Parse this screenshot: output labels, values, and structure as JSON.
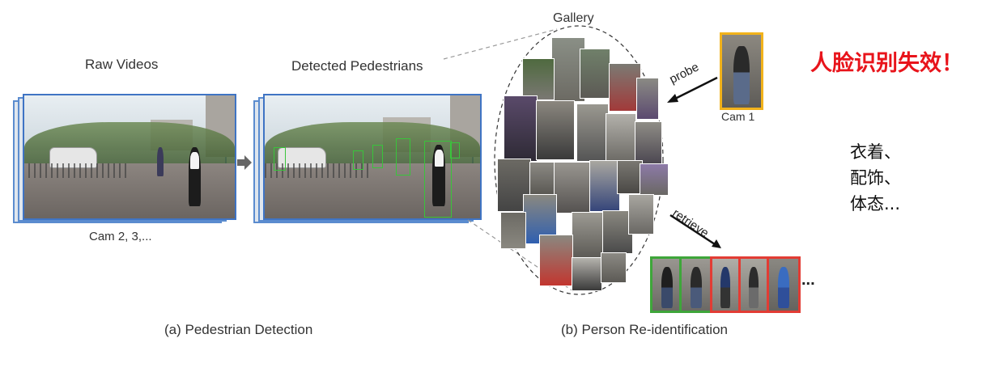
{
  "labels": {
    "raw_videos": "Raw Videos",
    "detected_pedestrians": "Detected Pedestrians",
    "cams_other": "Cam 2, 3,...",
    "gallery": "Gallery",
    "probe": "probe",
    "cam1": "Cam 1",
    "retrieve": "retrieve",
    "ellipsis": "...",
    "caption_a": "(a) Pedestrian Detection",
    "caption_b": "(b) Person Re-identification"
  },
  "annotations": {
    "face_fail": "人脸识别失效！",
    "cues": [
      "衣着、",
      "配饰、",
      "体态..."
    ]
  },
  "colors": {
    "frame_border": "#3f74c4",
    "detection_box": "#39c43b",
    "probe_border": "#f2b21b",
    "match_green": "#3ea63a",
    "mismatch_red": "#e23c34",
    "alert_red": "#e8141b"
  },
  "results": [
    {
      "status": "match"
    },
    {
      "status": "match"
    },
    {
      "status": "mismatch"
    },
    {
      "status": "mismatch"
    },
    {
      "status": "mismatch"
    }
  ]
}
